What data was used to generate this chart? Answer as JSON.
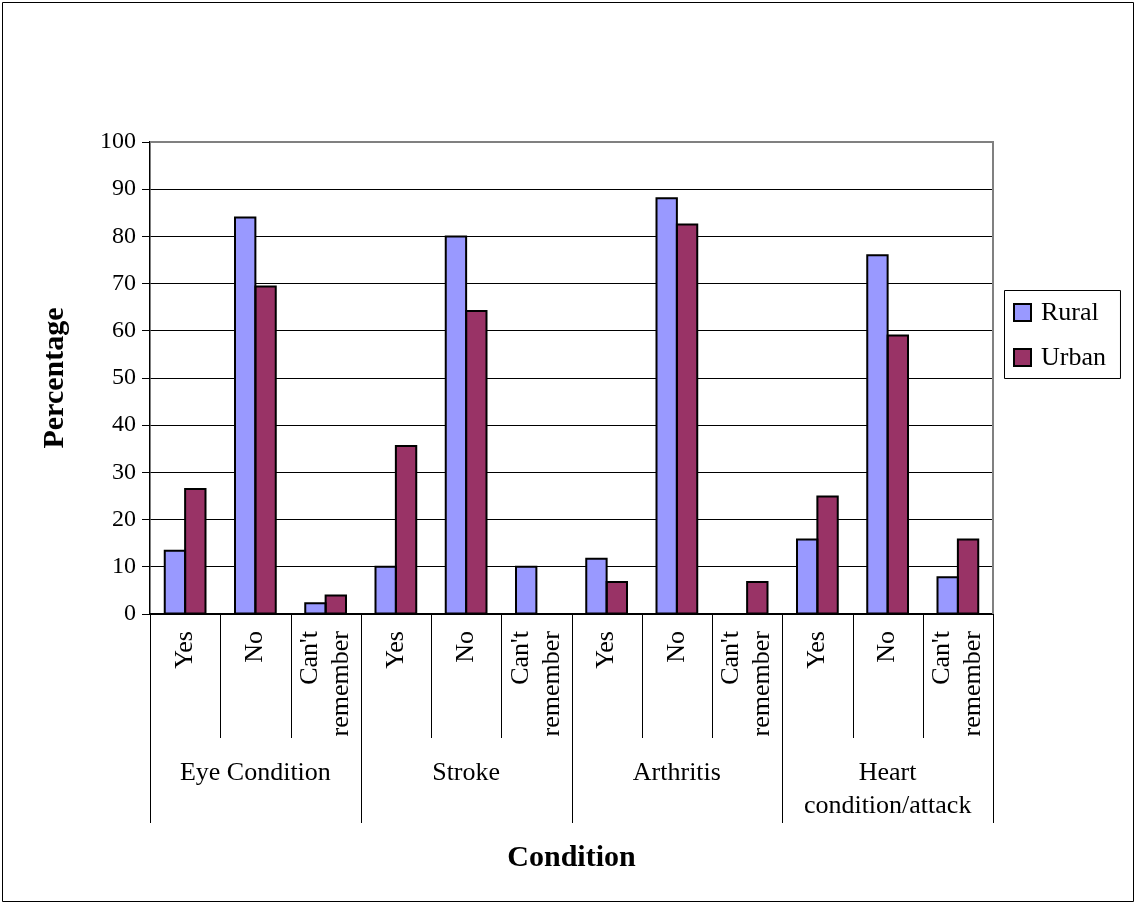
{
  "chart_data": {
    "type": "bar",
    "xlabel": "Condition",
    "ylabel": "Percentage",
    "categories": [
      "Yes",
      "No",
      "Can't remember",
      "Yes",
      "No",
      "Can't remember",
      "Yes",
      "No",
      "Can't remember",
      "Yes",
      "No",
      "Can't remember"
    ],
    "series": [
      {
        "name": "Rural",
        "color": "#9999ff",
        "values": [
          13.4,
          84,
          2.3,
          10,
          80,
          10,
          11.7,
          88.1,
          0,
          15.8,
          76,
          7.8
        ]
      },
      {
        "name": "Urban",
        "color": "#993366",
        "values": [
          26.5,
          69.4,
          3.9,
          35.6,
          64.2,
          0,
          6.8,
          82.5,
          6.8,
          24.9,
          59,
          15.8
        ]
      }
    ],
    "ylim": [
      0,
      100
    ],
    "yticks": [
      0,
      10,
      20,
      30,
      40,
      50,
      60,
      70,
      80,
      90,
      100
    ],
    "grid": "y",
    "legend": "right",
    "annotations": [
      "Eye Condition",
      "Stroke",
      "Arthritis",
      "Heart condition/attack"
    ]
  }
}
